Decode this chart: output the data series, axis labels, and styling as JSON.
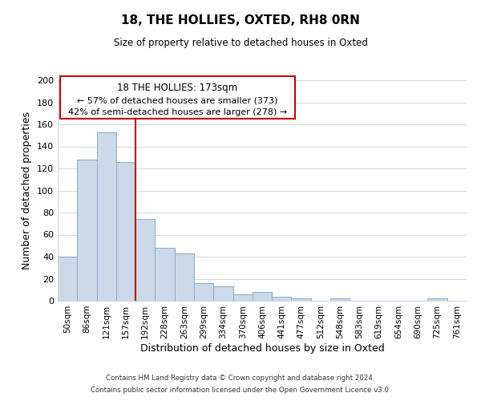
{
  "title": "18, THE HOLLIES, OXTED, RH8 0RN",
  "subtitle": "Size of property relative to detached houses in Oxted",
  "xlabel": "Distribution of detached houses by size in Oxted",
  "ylabel": "Number of detached properties",
  "bar_labels": [
    "50sqm",
    "86sqm",
    "121sqm",
    "157sqm",
    "192sqm",
    "228sqm",
    "263sqm",
    "299sqm",
    "334sqm",
    "370sqm",
    "406sqm",
    "441sqm",
    "477sqm",
    "512sqm",
    "548sqm",
    "583sqm",
    "619sqm",
    "654sqm",
    "690sqm",
    "725sqm",
    "761sqm"
  ],
  "bar_values": [
    40,
    128,
    153,
    126,
    74,
    48,
    43,
    16,
    13,
    6,
    8,
    4,
    2,
    0,
    2,
    0,
    0,
    0,
    0,
    2,
    0
  ],
  "bar_color": "#ccd9e8",
  "bar_edge_color": "#8aaac8",
  "ylim": [
    0,
    200
  ],
  "yticks": [
    0,
    20,
    40,
    60,
    80,
    100,
    120,
    140,
    160,
    180,
    200
  ],
  "vline_x": 3.5,
  "vline_color": "#cc0000",
  "annotation_title": "18 THE HOLLIES: 173sqm",
  "annotation_line1": "← 57% of detached houses are smaller (373)",
  "annotation_line2": "42% of semi-detached houses are larger (278) →",
  "annotation_box_color": "#ffffff",
  "annotation_box_edge": "#cc0000",
  "footnote1": "Contains HM Land Registry data © Crown copyright and database right 2024.",
  "footnote2": "Contains public sector information licensed under the Open Government Licence v3.0.",
  "background_color": "#ffffff",
  "grid_color": "#c8d8e8"
}
